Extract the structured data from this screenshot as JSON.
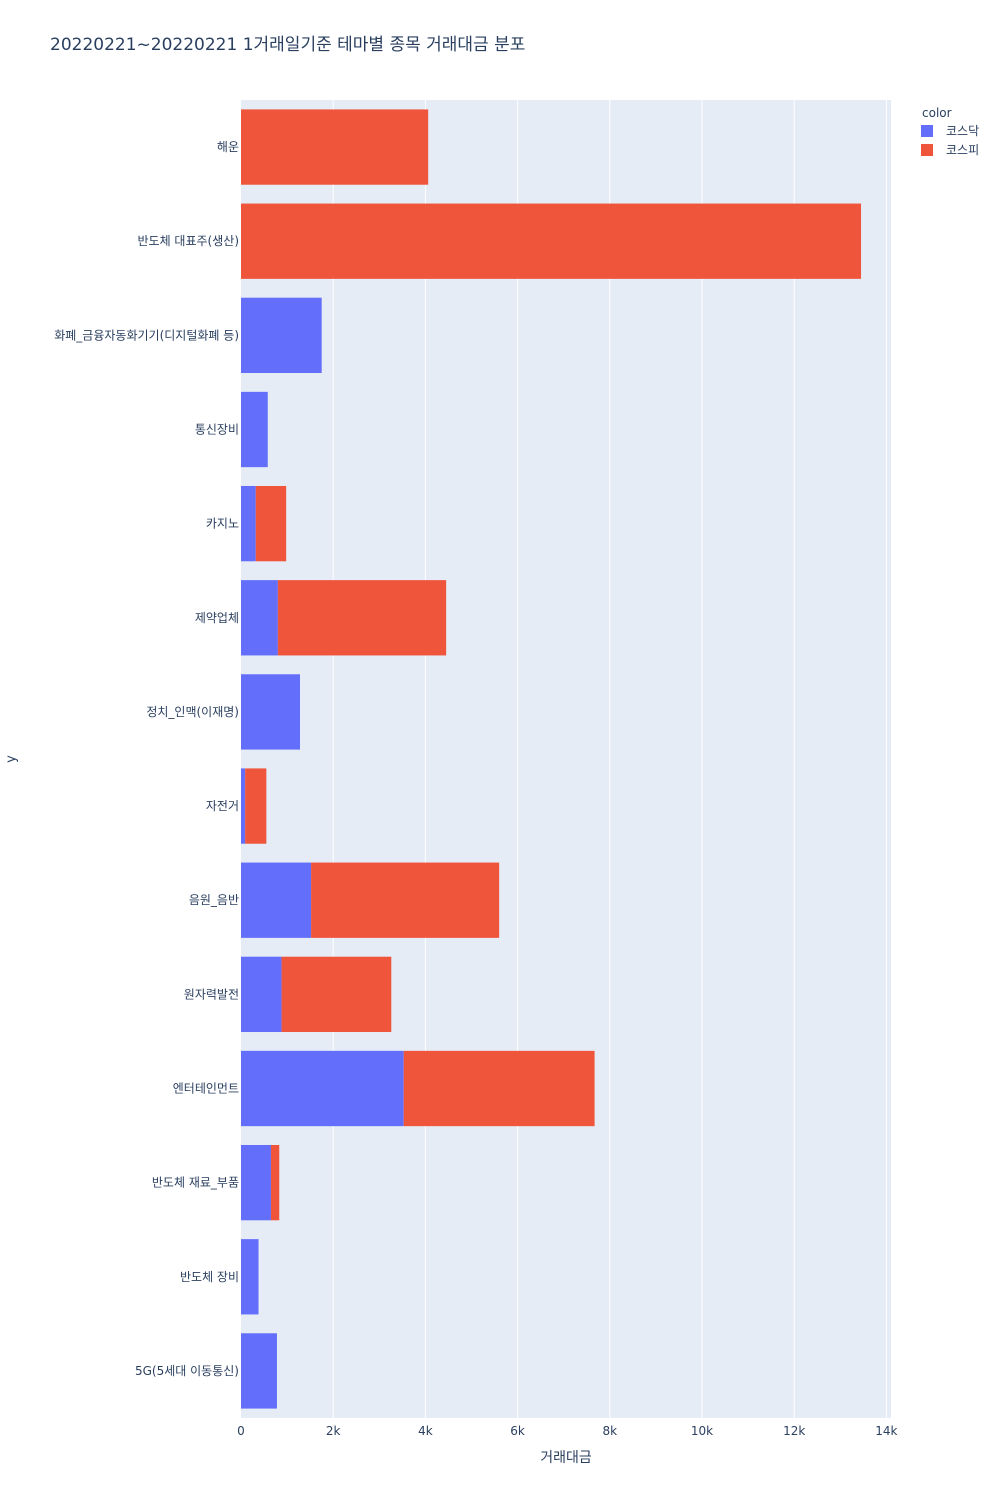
{
  "chart_data": {
    "type": "bar",
    "orientation": "horizontal",
    "barmode": "stack",
    "title": "20220221~20220221 1거래일기준 테마별 종목 거래대금 분포",
    "xlabel": "거래대금",
    "ylabel": "y",
    "xlim": [
      0,
      14100
    ],
    "x_ticks": [
      0,
      2000,
      4000,
      6000,
      8000,
      10000,
      12000,
      14000
    ],
    "x_tick_labels": [
      "0",
      "2k",
      "4k",
      "6k",
      "8k",
      "10k",
      "12k",
      "14k"
    ],
    "grid": true,
    "legend": {
      "title": "color",
      "placement": "top-right"
    },
    "categories": [
      "해운",
      "반도체 대표주(생산)",
      "화폐_금융자동화기기(디지털화폐 등)",
      "통신장비",
      "카지노",
      "제약업체",
      "정치_인맥(이재명)",
      "자전거",
      "음원_음반",
      "원자력발전",
      "엔터테인먼트",
      "반도체 재료_부품",
      "반도체 장비",
      "5G(5세대 이동통신)"
    ],
    "series": [
      {
        "name": "코스닥",
        "color": "#636efa",
        "values": [
          0,
          0,
          1750,
          580,
          320,
          800,
          1280,
          90,
          1520,
          880,
          3530,
          650,
          380,
          780
        ]
      },
      {
        "name": "코스피",
        "color": "#ef553b",
        "values": [
          4060,
          13450,
          0,
          0,
          660,
          3650,
          0,
          460,
          4080,
          2380,
          4140,
          180,
          0,
          0
        ]
      }
    ]
  }
}
